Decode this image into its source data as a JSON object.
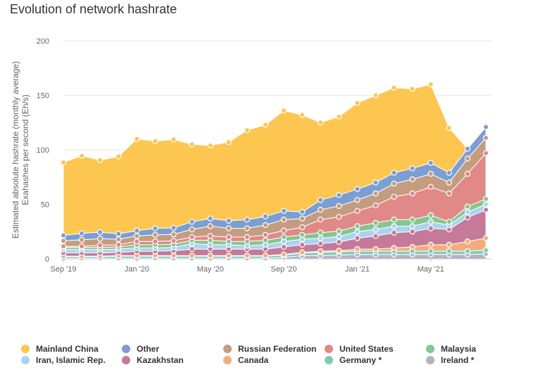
{
  "page_title": "Evolution of network hashrate",
  "chart_data": {
    "type": "area",
    "stacked": true,
    "title": "Evolution of network hashrate",
    "ylabel_line1": "Estimated absolute hashrate (monthly average)",
    "ylabel_line2": "Exahashes per second (Eh/s)",
    "ylim": [
      0,
      200
    ],
    "y_ticks": [
      0,
      50,
      100,
      150,
      200
    ],
    "grid": true,
    "legend_position": "bottom",
    "x": [
      "2019-09",
      "2019-10",
      "2019-11",
      "2019-12",
      "2020-01",
      "2020-02",
      "2020-03",
      "2020-04",
      "2020-05",
      "2020-06",
      "2020-07",
      "2020-08",
      "2020-09",
      "2020-10",
      "2020-11",
      "2020-12",
      "2021-01",
      "2021-02",
      "2021-03",
      "2021-04",
      "2021-05",
      "2021-06",
      "2021-07",
      "2021-08"
    ],
    "x_tick_labels": [
      {
        "index": 0,
        "label": "Sep '19"
      },
      {
        "index": 4,
        "label": "Jan '20"
      },
      {
        "index": 8,
        "label": "May '20"
      },
      {
        "index": 12,
        "label": "Sep '20"
      },
      {
        "index": 16,
        "label": "Jan '21"
      },
      {
        "index": 20,
        "label": "May '21"
      }
    ],
    "series": [
      {
        "name": "Ireland *",
        "color": "#b2b4c4",
        "values": [
          0.5,
          0.5,
          0.5,
          0.5,
          0.5,
          0.5,
          0.5,
          0.5,
          0.5,
          0.5,
          0.5,
          0.5,
          1.5,
          3,
          3,
          3.5,
          4,
          4,
          4,
          4,
          4,
          4,
          4,
          4.5
        ]
      },
      {
        "name": "Germany *",
        "color": "#7fcbbb",
        "values": [
          1.5,
          1.5,
          1.5,
          2,
          2,
          2,
          2,
          2,
          2,
          2,
          2,
          2,
          2,
          2.5,
          3,
          3,
          3,
          3,
          3,
          3,
          3,
          3,
          3,
          3.5
        ]
      },
      {
        "name": "Canada",
        "color": "#f0ae7e",
        "values": [
          0.5,
          0.5,
          0.5,
          0.5,
          0.5,
          0.5,
          0.5,
          0.5,
          0.5,
          0.5,
          0.5,
          0.5,
          0.5,
          0.5,
          1,
          1,
          2,
          2,
          3,
          4,
          6,
          6,
          9,
          11
        ]
      },
      {
        "name": "Kazakhstan",
        "color": "#c47a98",
        "values": [
          3,
          3,
          3,
          3,
          4,
          4,
          4.5,
          6,
          6,
          6,
          6,
          6,
          7,
          7,
          7,
          8,
          10,
          12,
          14,
          14,
          15,
          14,
          22,
          26
        ]
      },
      {
        "name": "Iran, Islamic Rep.",
        "color": "#a9d3f0",
        "values": [
          3,
          3,
          3,
          3,
          3,
          3,
          3,
          5,
          4,
          4,
          3,
          4,
          5,
          5,
          5,
          5,
          6,
          6,
          6,
          5,
          6,
          4,
          5,
          5
        ]
      },
      {
        "name": "Malaysia",
        "color": "#86c58d",
        "values": [
          2,
          2,
          2,
          2,
          3,
          3,
          3,
          3,
          4,
          3,
          4,
          4,
          4,
          4,
          5,
          5,
          5,
          6,
          6,
          6,
          6,
          3,
          5,
          5
        ]
      },
      {
        "name": "United States",
        "color": "#e08987",
        "values": [
          1,
          1,
          2,
          2,
          3,
          3,
          3,
          3,
          4,
          4,
          4,
          5,
          6,
          7,
          12,
          13,
          14,
          16,
          21,
          24,
          26,
          26,
          30,
          42
        ]
      },
      {
        "name": "Russian Federation",
        "color": "#c49c80",
        "values": [
          5,
          6,
          6,
          5,
          5,
          6,
          6,
          7,
          9,
          8,
          8,
          9,
          10,
          8,
          9,
          10,
          10,
          11,
          12,
          13,
          12,
          10,
          14,
          14
        ]
      },
      {
        "name": "Other",
        "color": "#7b9ed3",
        "values": [
          5,
          6,
          6,
          5,
          5,
          6,
          6,
          7,
          7,
          7,
          8,
          8,
          8,
          6,
          9,
          10,
          10,
          10,
          10,
          10,
          10,
          9,
          9,
          10
        ]
      },
      {
        "name": "Mainland China",
        "color": "#fdc651",
        "values": [
          67,
          71,
          66,
          71,
          84,
          80,
          81,
          71,
          67,
          72,
          82,
          84,
          92,
          89,
          71,
          72,
          79,
          80,
          78,
          73,
          72,
          41,
          0,
          0
        ]
      }
    ],
    "legend_order": [
      "Mainland China",
      "Other",
      "Russian Federation",
      "United States",
      "Malaysia",
      "Iran, Islamic Rep.",
      "Kazakhstan",
      "Canada",
      "Germany *",
      "Ireland *"
    ]
  }
}
